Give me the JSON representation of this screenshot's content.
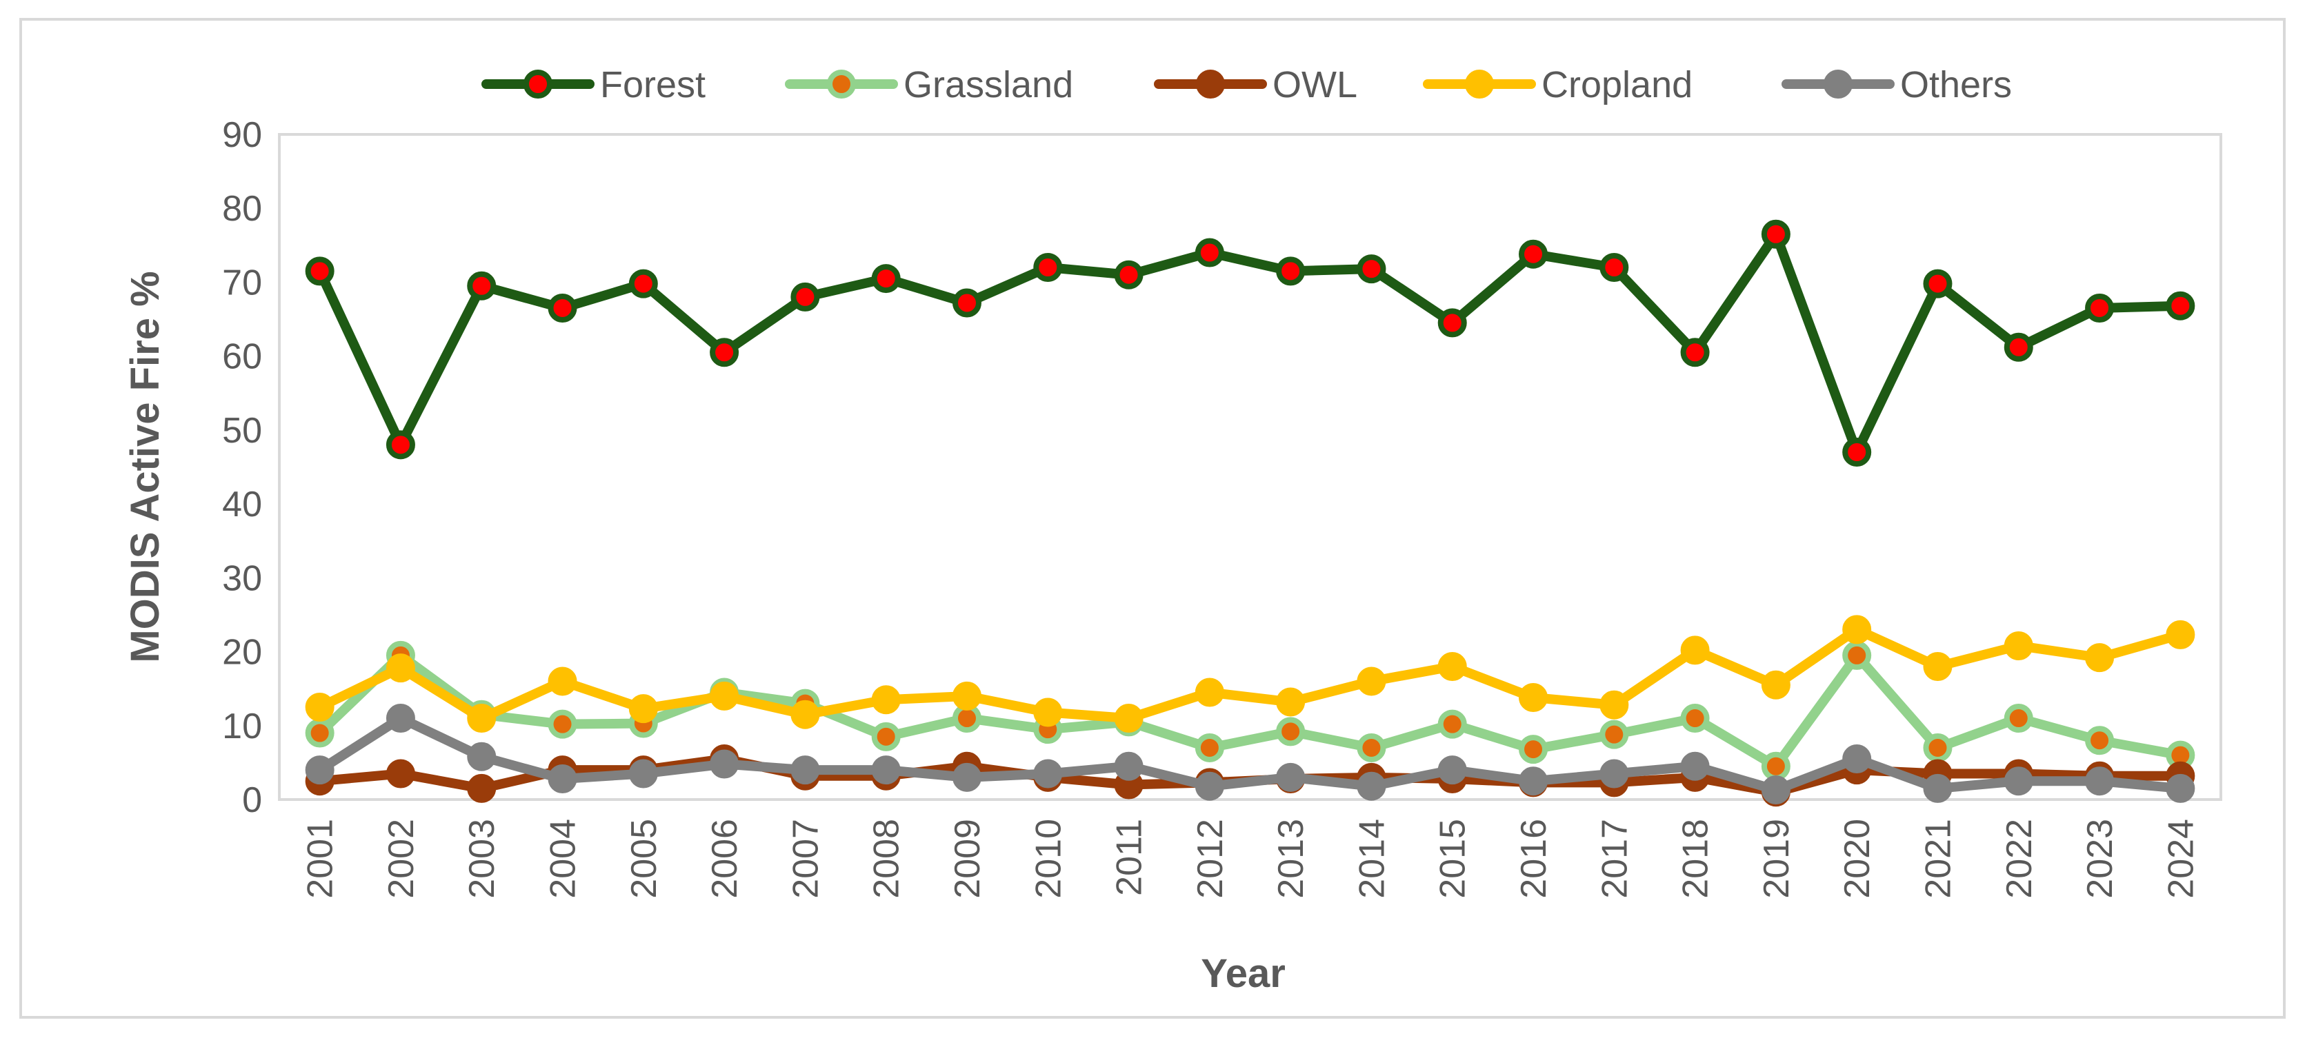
{
  "chart_data": {
    "type": "line",
    "title": "",
    "xlabel": "Year",
    "ylabel": "MODIS Active Fire %",
    "ylim": [
      0,
      90
    ],
    "yticks": [
      0,
      10,
      20,
      30,
      40,
      50,
      60,
      70,
      80,
      90
    ],
    "grid": false,
    "legend_position": "top",
    "categories": [
      "2001",
      "2002",
      "2003",
      "2004",
      "2005",
      "2006",
      "2007",
      "2008",
      "2009",
      "2010",
      "2011",
      "2012",
      "2013",
      "2014",
      "2015",
      "2016",
      "2017",
      "2018",
      "2019",
      "2020",
      "2021",
      "2022",
      "2023",
      "2024"
    ],
    "series": [
      {
        "name": "Forest",
        "line_color": "#1e5a14",
        "marker_color": "#ff0000",
        "values": [
          71.5,
          48,
          69.5,
          66.5,
          69.8,
          60.5,
          68,
          70.5,
          67.2,
          72,
          71,
          74,
          71.5,
          71.8,
          64.5,
          73.8,
          72,
          60.5,
          76.5,
          47,
          69.8,
          61.2,
          66.5,
          66.8
        ]
      },
      {
        "name": "Grassland",
        "line_color": "#92d28c",
        "marker_color": "#e36c0a",
        "values": [
          9,
          19.5,
          11.5,
          10.2,
          10.3,
          14.5,
          13,
          8.5,
          11,
          9.5,
          10.5,
          7,
          9.2,
          7,
          10.2,
          6.8,
          8.8,
          11,
          4.5,
          19.5,
          7,
          11,
          8,
          6
        ]
      },
      {
        "name": "OWL",
        "line_color": "#9a3c0a",
        "marker_color": "#9a3c0a",
        "values": [
          2.5,
          3.5,
          1.5,
          4,
          4,
          5.5,
          3.2,
          3.2,
          4.5,
          3,
          2,
          2.3,
          2.8,
          3,
          2.8,
          2.3,
          2.3,
          3,
          1,
          4,
          3.5,
          3.5,
          3.2,
          3.2
        ]
      },
      {
        "name": "Cropland",
        "line_color": "#ffc000",
        "marker_color": "#ffc000",
        "values": [
          12.5,
          17.8,
          11,
          16,
          12.3,
          14,
          11.5,
          13.5,
          14,
          11.8,
          11,
          14.5,
          13.2,
          16,
          18,
          13.8,
          12.8,
          20.2,
          15.5,
          23,
          18,
          20.8,
          19.2,
          22.3
        ]
      },
      {
        "name": "Others",
        "line_color": "#808080",
        "marker_color": "#808080",
        "values": [
          4,
          11,
          5.8,
          2.8,
          3.5,
          4.8,
          4,
          4,
          3,
          3.5,
          4.5,
          1.8,
          3,
          1.8,
          4,
          2.5,
          3.5,
          4.5,
          1.3,
          5.5,
          1.5,
          2.5,
          2.5,
          1.5
        ]
      }
    ]
  }
}
